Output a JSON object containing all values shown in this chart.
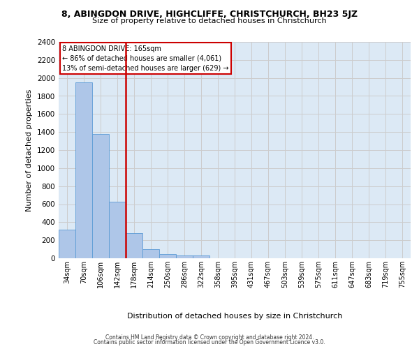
{
  "title": "8, ABINGDON DRIVE, HIGHCLIFFE, CHRISTCHURCH, BH23 5JZ",
  "subtitle": "Size of property relative to detached houses in Christchurch",
  "xlabel": "Distribution of detached houses by size in Christchurch",
  "ylabel": "Number of detached properties",
  "bar_labels": [
    "34sqm",
    "70sqm",
    "106sqm",
    "142sqm",
    "178sqm",
    "214sqm",
    "250sqm",
    "286sqm",
    "322sqm",
    "358sqm",
    "395sqm",
    "431sqm",
    "467sqm",
    "503sqm",
    "539sqm",
    "575sqm",
    "611sqm",
    "647sqm",
    "683sqm",
    "719sqm",
    "755sqm"
  ],
  "bar_values": [
    320,
    1950,
    1380,
    630,
    275,
    100,
    47,
    32,
    28,
    0,
    0,
    0,
    0,
    0,
    0,
    0,
    0,
    0,
    0,
    0,
    0
  ],
  "bar_color": "#aec6e8",
  "bar_edge_color": "#5b9bd5",
  "vline_x": 3.5,
  "annotation_line1": "8 ABINGDON DRIVE: 165sqm",
  "annotation_line2": "← 86% of detached houses are smaller (4,061)",
  "annotation_line3": "13% of semi-detached houses are larger (629) →",
  "vline_color": "#cc0000",
  "ylim": [
    0,
    2400
  ],
  "yticks": [
    0,
    200,
    400,
    600,
    800,
    1000,
    1200,
    1400,
    1600,
    1800,
    2000,
    2200,
    2400
  ],
  "grid_color": "#cccccc",
  "bg_color": "#dce9f5",
  "footer1": "Contains HM Land Registry data © Crown copyright and database right 2024.",
  "footer2": "Contains public sector information licensed under the Open Government Licence v3.0."
}
